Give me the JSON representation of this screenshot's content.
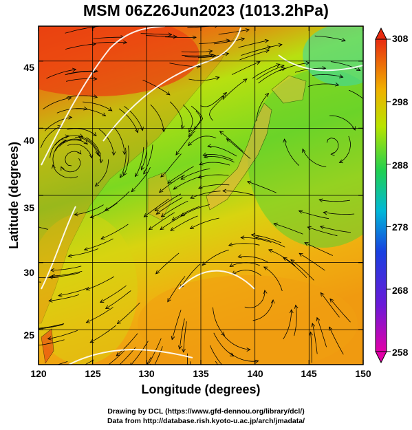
{
  "title": "MSM 06Z26Jun2023 (1013.2hPa)",
  "axes": {
    "xlabel": "Longitude (degrees)",
    "ylabel": "Latitude  (degrees)",
    "x_ticks": [
      "120",
      "125",
      "130",
      "135",
      "140",
      "145",
      "150"
    ],
    "y_ticks": [
      "25",
      "30",
      "35",
      "40",
      "45"
    ],
    "x_range": [
      120,
      150
    ],
    "y_range": [
      22.4,
      47.6
    ]
  },
  "colorbar": {
    "ticks": [
      "308",
      "298",
      "288",
      "278",
      "268",
      "258"
    ],
    "range": [
      258,
      308
    ],
    "colors": [
      "#e2009c",
      "#2a2ad8",
      "#00c0c8",
      "#30d030",
      "#d6e800",
      "#f0a000",
      "#e83010"
    ]
  },
  "credits": {
    "line1": "Drawing by DCL (https://www.gfd-dennou.org/library/dcl/)",
    "line2": "Data from http://database.rish.kyoto-u.ac.jp/arch/jmadata/"
  }
}
